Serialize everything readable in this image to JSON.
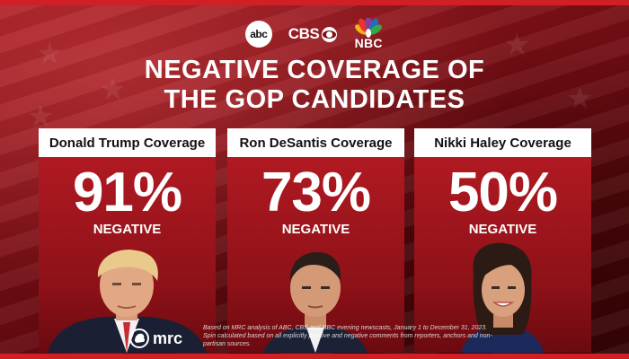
{
  "networks": {
    "abc": "abc",
    "cbs": "CBS",
    "nbc": "NBC"
  },
  "headline": {
    "line1": "NEGATIVE COVERAGE OF",
    "line2": "THE GOP CANDIDATES"
  },
  "cards": [
    {
      "title": "Donald Trump Coverage",
      "percent": "91%",
      "label": "NEGATIVE"
    },
    {
      "title": "Ron DeSantis Coverage",
      "percent": "73%",
      "label": "NEGATIVE"
    },
    {
      "title": "Nikki Haley Coverage",
      "percent": "50%",
      "label": "NEGATIVE"
    }
  ],
  "brand": {
    "name": "mrc"
  },
  "footnote": "Based on MRC analysis of ABC, CBS and NBC evening newscasts, January 1 to December 31, 2023. Spin calculated based on all explicitly positive and negative comments from reporters, anchors and non-partisan sources.",
  "colors": {
    "accent": "#d11f26",
    "card": "#b81b24",
    "background": "#7a0d12"
  }
}
